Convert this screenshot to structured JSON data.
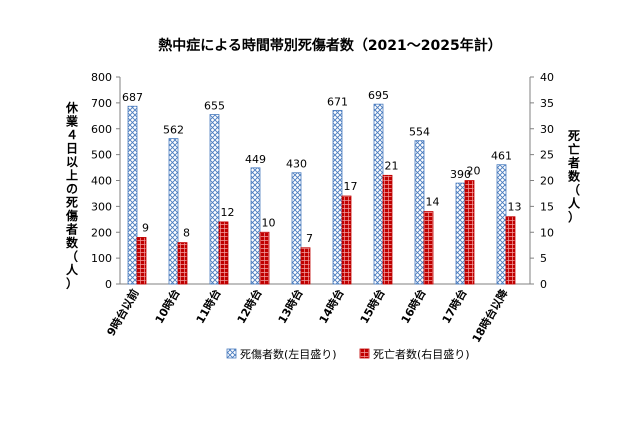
{
  "chart_data": {
    "type": "bar",
    "title": "熱中症による時間帯別死傷者数（2021～2025年計）",
    "categories": [
      "9時台以前",
      "10時台",
      "11時台",
      "12時台",
      "13時台",
      "14時台",
      "15時台",
      "16時台",
      "17時台",
      "18時台以降"
    ],
    "series": [
      {
        "name": "死傷者数(左目盛り)",
        "axis": "left",
        "values": [
          687,
          562,
          655,
          449,
          430,
          671,
          695,
          554,
          390,
          461
        ],
        "color": "#4a7cbf",
        "pattern": "crosshatch"
      },
      {
        "name": "死亡者数(右目盛り)",
        "axis": "right",
        "values": [
          9,
          8,
          12,
          10,
          7,
          17,
          21,
          14,
          20,
          13
        ],
        "color": "#c00000",
        "pattern": "grid"
      }
    ],
    "ylabel": "休業４日以上の死傷者数（人）",
    "y2label": "死亡者数（人）",
    "ylim": [
      0,
      800
    ],
    "y2lim": [
      0,
      40
    ],
    "yticks": [
      "0",
      "100",
      "200",
      "300",
      "400",
      "500",
      "600",
      "700",
      "800"
    ],
    "y2ticks": [
      "0",
      "5",
      "10",
      "15",
      "20",
      "25",
      "30",
      "35",
      "40"
    ],
    "grid": false,
    "legend_position": "bottom"
  }
}
